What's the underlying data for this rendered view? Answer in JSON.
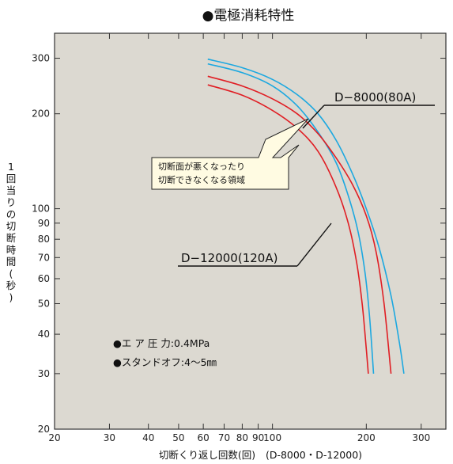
{
  "chart_data": {
    "type": "line",
    "title": "●電極消耗特性",
    "xlabel": "切断くり返し回数(回)",
    "xlabel_note": "(D-8000・D-12000)",
    "ylabel": "1回当りの切断時間(秒)",
    "x_scale": "log",
    "y_scale": "log",
    "xlim": [
      20,
      360
    ],
    "ylim": [
      20,
      360
    ],
    "x_ticks": [
      20,
      30,
      40,
      50,
      60,
      70,
      80,
      90,
      100,
      200,
      300
    ],
    "y_ticks": [
      20,
      30,
      40,
      50,
      60,
      70,
      80,
      90,
      100,
      200,
      300
    ],
    "grid": false,
    "series": [
      {
        "name": "D-8000(80A)",
        "color": "#1ca8e0",
        "role": "outer",
        "points": [
          [
            62,
            298
          ],
          [
            80,
            280
          ],
          [
            100,
            257
          ],
          [
            120,
            230
          ],
          [
            140,
            200
          ],
          [
            160,
            165
          ],
          [
            180,
            130
          ],
          [
            200,
            100
          ],
          [
            220,
            75
          ],
          [
            240,
            53
          ],
          [
            255,
            38
          ],
          [
            264,
            30
          ]
        ]
      },
      {
        "name": "D-8000(80A)",
        "color": "#1ca8e0",
        "role": "inner",
        "points": [
          [
            62,
            288
          ],
          [
            80,
            270
          ],
          [
            100,
            245
          ],
          [
            120,
            212
          ],
          [
            140,
            175
          ],
          [
            160,
            140
          ],
          [
            175,
            110
          ],
          [
            188,
            85
          ],
          [
            198,
            63
          ],
          [
            205,
            45
          ],
          [
            211,
            30
          ]
        ]
      },
      {
        "name": "D-12000(120A)",
        "color": "#e01e24",
        "role": "outer",
        "points": [
          [
            62,
            263
          ],
          [
            80,
            245
          ],
          [
            100,
            223
          ],
          [
            120,
            200
          ],
          [
            140,
            173
          ],
          [
            160,
            145
          ],
          [
            180,
            120
          ],
          [
            200,
            95
          ],
          [
            215,
            73
          ],
          [
            228,
            50
          ],
          [
            240,
            30
          ]
        ]
      },
      {
        "name": "D-12000(120A)",
        "color": "#e01e24",
        "role": "inner",
        "points": [
          [
            62,
            247
          ],
          [
            80,
            229
          ],
          [
            100,
            205
          ],
          [
            120,
            180
          ],
          [
            140,
            152
          ],
          [
            160,
            117
          ],
          [
            175,
            90
          ],
          [
            186,
            68
          ],
          [
            194,
            50
          ],
          [
            199,
            38
          ],
          [
            203,
            30
          ]
        ]
      }
    ],
    "annotations": {
      "label_80": "D−8000(80A)",
      "label_120": "D−12000(120A)",
      "callout_line1": "切断面が悪くなったり",
      "callout_line2": "切断できなくなる領域",
      "cond1": "●エ ア 圧 力:0.4MPa",
      "cond2": "●スタンドオフ:4〜5㎜"
    }
  },
  "colors": {
    "plot_bg": "#dcd9d1",
    "frame": "#333333",
    "callout_bg": "#fffbe2"
  }
}
